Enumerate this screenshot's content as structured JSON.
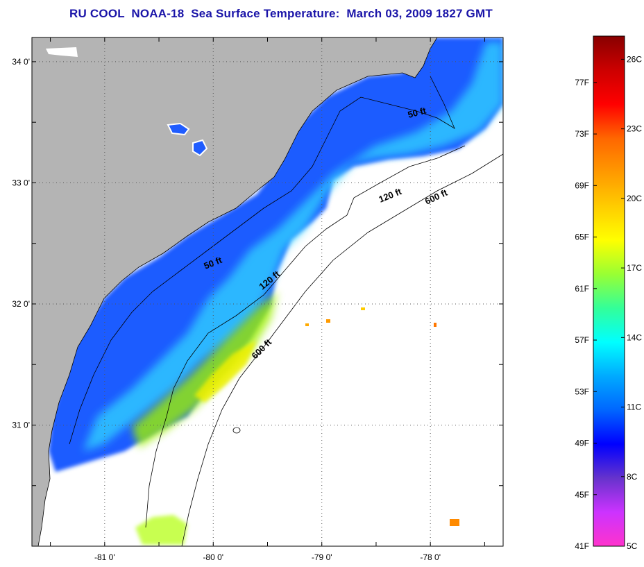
{
  "title": "RU COOL  NOAA-18  Sea Surface Temperature:  March 03, 2009 1827 GMT",
  "map": {
    "lon_range": [
      -81.67,
      -77.33
    ],
    "lat_range": [
      30.0,
      34.2
    ],
    "lon_ticks": [
      {
        "value": -81,
        "label": "-81 0'"
      },
      {
        "value": -80,
        "label": "-80 0'"
      },
      {
        "value": -79,
        "label": "-79 0'"
      },
      {
        "value": -78,
        "label": "-78 0'"
      }
    ],
    "lat_ticks": [
      {
        "value": 34,
        "label": "34 0'"
      },
      {
        "value": 33,
        "label": "33 0'"
      },
      {
        "value": 32,
        "label": "32 0'"
      },
      {
        "value": 31,
        "label": "31 0'"
      }
    ],
    "grid": "dotted",
    "land_color": "#b4b4b4",
    "cloud_color": "#ffffff",
    "contours": [
      {
        "depth": "50 ft",
        "labels": [
          "50 ft",
          "50 ft"
        ]
      },
      {
        "depth": "120 ft",
        "labels": [
          "120 ft",
          "120 ft"
        ]
      },
      {
        "depth": "600 ft",
        "labels": [
          "600 ft",
          "600 ft"
        ]
      }
    ]
  },
  "colorbar": {
    "range_c": [
      5,
      27
    ],
    "fahrenheit_labels": [
      {
        "value_f": 77,
        "label": "77F"
      },
      {
        "value_f": 73,
        "label": "73F"
      },
      {
        "value_f": 69,
        "label": "69F"
      },
      {
        "value_f": 65,
        "label": "65F"
      },
      {
        "value_f": 61,
        "label": "61F"
      },
      {
        "value_f": 57,
        "label": "57F"
      },
      {
        "value_f": 53,
        "label": "53F"
      },
      {
        "value_f": 49,
        "label": "49F"
      },
      {
        "value_f": 45,
        "label": "45F"
      },
      {
        "value_f": 41,
        "label": "41F"
      }
    ],
    "celsius_labels": [
      {
        "value_c": 26,
        "label": "26C"
      },
      {
        "value_c": 23,
        "label": "23C"
      },
      {
        "value_c": 20,
        "label": "20C"
      },
      {
        "value_c": 17,
        "label": "17C"
      },
      {
        "value_c": 14,
        "label": "14C"
      },
      {
        "value_c": 11,
        "label": "11C"
      },
      {
        "value_c": 8,
        "label": "8C"
      },
      {
        "value_c": 5,
        "label": "5C"
      }
    ],
    "colors": [
      "#ff33cc",
      "#cc33ff",
      "#6633cc",
      "#0000ff",
      "#0066ff",
      "#00aaff",
      "#00ffff",
      "#33ff99",
      "#99ff33",
      "#ffff00",
      "#ffcc00",
      "#ff9900",
      "#ff6600",
      "#ff0000",
      "#cc0000",
      "#880000"
    ]
  }
}
